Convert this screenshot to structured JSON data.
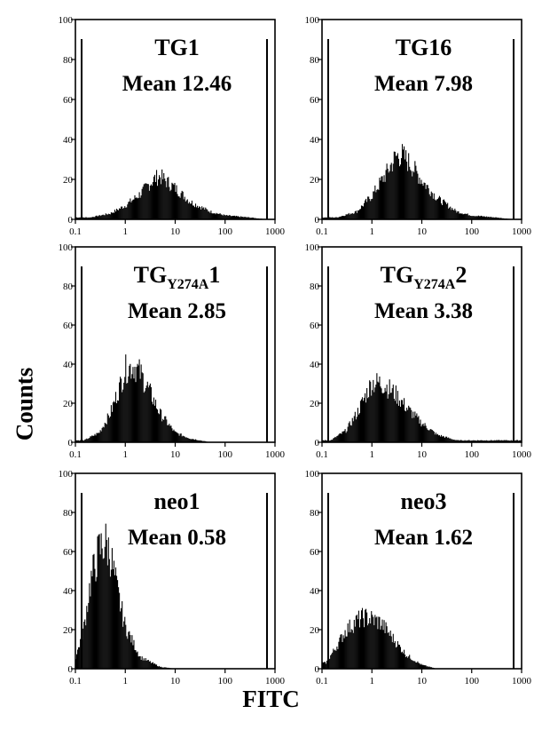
{
  "figure": {
    "ylabel": "Counts",
    "xlabel": "FITC",
    "colors": {
      "bars": "#000000",
      "axis": "#000000",
      "background": "#ffffff"
    }
  },
  "chart_data": [
    {
      "type": "bar",
      "x_scale": "log",
      "xlim": [
        0.1,
        1000
      ],
      "ylim": [
        0,
        100
      ],
      "xticks": [
        "0.1",
        "1",
        "10",
        "100",
        "1000"
      ],
      "yticks": [
        "0",
        "20",
        "40",
        "60",
        "80",
        "100"
      ],
      "title": "TG1",
      "mean_text": "Mean 12.46",
      "x": [
        0.2,
        0.5,
        1,
        2,
        3,
        4,
        5,
        7,
        10,
        20,
        50,
        100,
        300,
        700
      ],
      "values": [
        1,
        3,
        7,
        13,
        18,
        21,
        22,
        19,
        16,
        9,
        4,
        2,
        1,
        0
      ]
    },
    {
      "type": "bar",
      "x_scale": "log",
      "xlim": [
        0.1,
        1000
      ],
      "ylim": [
        0,
        100
      ],
      "xticks": [
        "0.1",
        "1",
        "10",
        "100",
        "1000"
      ],
      "yticks": [
        "0",
        "20",
        "40",
        "60",
        "80",
        "100"
      ],
      "title": "TG16",
      "mean_text": "Mean 7.98",
      "x": [
        0.2,
        0.5,
        1,
        2,
        3,
        4,
        6,
        10,
        20,
        50,
        100,
        300,
        700
      ],
      "values": [
        1,
        4,
        12,
        24,
        32,
        33,
        28,
        20,
        11,
        4,
        2,
        1,
        0
      ]
    },
    {
      "type": "bar",
      "x_scale": "log",
      "xlim": [
        0.1,
        1000
      ],
      "ylim": [
        0,
        100
      ],
      "xticks": [
        "0.1",
        "1",
        "10",
        "100",
        "1000"
      ],
      "yticks": [
        "0",
        "20",
        "40",
        "60",
        "80",
        "100"
      ],
      "title": "TG",
      "title_subscript": "Y274A",
      "title_suffix": "1",
      "mean_text": "Mean 2.85",
      "x": [
        0.15,
        0.3,
        0.5,
        0.8,
        1,
        1.5,
        2,
        3,
        5,
        10,
        20,
        50
      ],
      "values": [
        1,
        5,
        15,
        30,
        38,
        40,
        36,
        27,
        15,
        5,
        2,
        0
      ]
    },
    {
      "type": "bar",
      "x_scale": "log",
      "xlim": [
        0.1,
        1000
      ],
      "ylim": [
        0,
        100
      ],
      "xticks": [
        "0.1",
        "1",
        "10",
        "100",
        "1000"
      ],
      "yticks": [
        "0",
        "20",
        "40",
        "60",
        "80",
        "100"
      ],
      "title": "TG",
      "title_subscript": "Y274A",
      "title_suffix": "2",
      "mean_text": "Mean 3.38",
      "x": [
        0.15,
        0.3,
        0.5,
        0.8,
        1,
        1.5,
        2,
        3,
        5,
        10,
        20,
        50
      ],
      "values": [
        1,
        6,
        15,
        26,
        31,
        31,
        29,
        25,
        18,
        10,
        4,
        1
      ]
    },
    {
      "type": "bar",
      "x_scale": "log",
      "xlim": [
        0.1,
        1000
      ],
      "ylim": [
        0,
        100
      ],
      "xticks": [
        "0.1",
        "1",
        "10",
        "100",
        "1000"
      ],
      "yticks": [
        "0",
        "20",
        "40",
        "60",
        "80",
        "100"
      ],
      "title": "neo1",
      "mean_text": "Mean 0.58",
      "x": [
        0.1,
        0.15,
        0.2,
        0.3,
        0.4,
        0.5,
        0.7,
        1,
        2,
        5,
        10
      ],
      "values": [
        5,
        22,
        45,
        62,
        66,
        60,
        40,
        22,
        6,
        1,
        0
      ]
    },
    {
      "type": "bar",
      "x_scale": "log",
      "xlim": [
        0.1,
        1000
      ],
      "ylim": [
        0,
        100
      ],
      "xticks": [
        "0.1",
        "1",
        "10",
        "100",
        "1000"
      ],
      "yticks": [
        "0",
        "20",
        "40",
        "60",
        "80",
        "100"
      ],
      "title": "neo3",
      "mean_text": "Mean 1.62",
      "x": [
        0.12,
        0.2,
        0.3,
        0.5,
        0.7,
        1,
        1.5,
        2,
        3,
        5,
        10,
        20
      ],
      "values": [
        3,
        12,
        20,
        25,
        27,
        26,
        24,
        20,
        14,
        7,
        2,
        0
      ]
    }
  ]
}
